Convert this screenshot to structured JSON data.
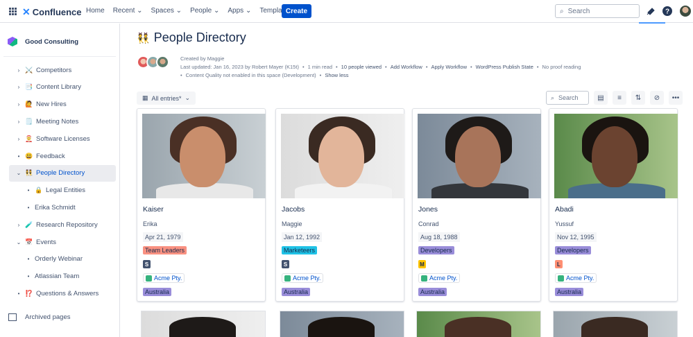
{
  "topbar": {
    "product": "Confluence",
    "nav": [
      "Home",
      "Recent",
      "Spaces",
      "People",
      "Apps",
      "Templates"
    ],
    "nav_dropdowns": [
      false,
      true,
      true,
      true,
      true,
      false
    ],
    "create_label": "Create",
    "search_placeholder": "Search"
  },
  "sidebar": {
    "space_name": "Good Consulting",
    "items": [
      {
        "label": "Competitors",
        "icon": "⚔️",
        "caret": "›",
        "level": 0
      },
      {
        "label": "Content Library",
        "icon": "📑",
        "caret": "›",
        "level": 0
      },
      {
        "label": "New Hires",
        "icon": "🙋",
        "caret": "›",
        "level": 0
      },
      {
        "label": "Meeting Notes",
        "icon": "🗒️",
        "caret": "›",
        "level": 0
      },
      {
        "label": "Software Licenses",
        "icon": "🤶",
        "caret": "›",
        "level": 0
      },
      {
        "label": "Feedback",
        "icon": "😃",
        "caret": "•",
        "level": 0
      },
      {
        "label": "People Directory",
        "icon": "👯",
        "caret": "⌄",
        "level": 0,
        "active": true
      },
      {
        "label": "Legal Entities",
        "icon": "🔒",
        "caret": "•",
        "level": 1
      },
      {
        "label": "Erika Schmidt",
        "icon": "",
        "caret": "•",
        "level": 1
      },
      {
        "label": "Research Repository",
        "icon": "🧪",
        "caret": "›",
        "level": 0
      },
      {
        "label": "Events",
        "icon": "📅",
        "caret": "⌄",
        "level": 0
      },
      {
        "label": "Orderly Webinar",
        "icon": "",
        "caret": "•",
        "level": 1
      },
      {
        "label": "Atlassian Team",
        "icon": "",
        "caret": "•",
        "level": 1
      },
      {
        "label": "Questions & Answers",
        "icon": "⁉️",
        "caret": "•",
        "level": 0
      }
    ],
    "archived": "Archived pages"
  },
  "page": {
    "title_emoji": "👯",
    "title": "People Directory",
    "created_by": "Created by Maggie",
    "meta_line1": [
      "Last updated: Jan 16, 2023 by Robert Mayer (K15t)",
      "1 min read",
      "10 people viewed",
      "Add Workflow",
      "Apply Workflow",
      "WordPress Publish State",
      "No proof reading"
    ],
    "meta_line2": [
      "Content Quality not enabled in this space (Development)",
      "Show less"
    ]
  },
  "database": {
    "view_label": "All entries*",
    "search_placeholder": "Search"
  },
  "colors": {
    "accent": "#0052cc",
    "team_leaders": "#f99181",
    "marketeers": "#1fc2e6",
    "developers": "#998dd9",
    "level_s": "#42526e",
    "level_m": "#ffc400",
    "level_l": "#ff8f73"
  },
  "cards": [
    {
      "last": "Kaiser",
      "first": "Erika",
      "dob": "Apr 21, 1979",
      "team": "Team Leaders",
      "team_color": "#f99181",
      "level": "S",
      "level_color": "#42526e",
      "level_fg": "#fff",
      "entity": "Acme Pty.",
      "country": "Australia"
    },
    {
      "last": "Jacobs",
      "first": "Maggie",
      "dob": "Jan 12, 1992",
      "team": "Marketeers",
      "team_color": "#1fc2e6",
      "level": "S",
      "level_color": "#42526e",
      "level_fg": "#fff",
      "entity": "Acme Pty.",
      "country": "Australia"
    },
    {
      "last": "Jones",
      "first": "Conrad",
      "dob": "Aug 18, 1988",
      "team": "Developers",
      "team_color": "#998dd9",
      "level": "M",
      "level_color": "#ffc400",
      "level_fg": "#172b4d",
      "entity": "Acme Pty.",
      "country": "Australia"
    },
    {
      "last": "Abadi",
      "first": "Yussuf",
      "dob": "Nov 12, 1995",
      "team": "Developers",
      "team_color": "#998dd9",
      "level": "L",
      "level_color": "#ff8f73",
      "level_fg": "#172b4d",
      "entity": "Acme Pty.",
      "country": "Australia"
    }
  ]
}
